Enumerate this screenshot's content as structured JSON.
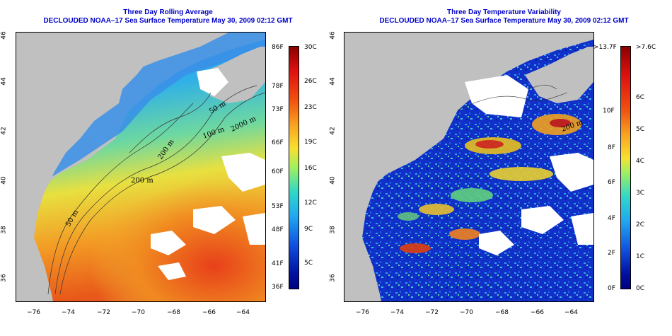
{
  "left_panel": {
    "title_line1": "Three Day Rolling Average",
    "title_line2": "DECLOUDED NOAA–17 Sea Surface Temperature May 30, 2009 02:12 GMT",
    "contours": [
      "200 m",
      "200 m",
      "2000 m",
      "100 m",
      "50 m",
      "50 m"
    ],
    "colorbar": {
      "left_labels": [
        "86F",
        "78F",
        "73F",
        "66F",
        "60F",
        "53F",
        "48F",
        "41F",
        "36F"
      ],
      "right_labels": [
        "30C",
        "26C",
        "23C",
        "19C",
        "16C",
        "12C",
        "9C",
        "5C"
      ]
    }
  },
  "right_panel": {
    "title_line1": "Three Day Temperature Variability",
    "title_line2": "DECLOUDED NOAA–17 Sea Surface Temperature May 30, 2009 02:12 GMT",
    "contours": [
      "200 m"
    ],
    "colorbar": {
      "left_labels": [
        ">13.7F",
        "10F",
        "8F",
        "6F",
        "4F",
        "2F",
        "0F"
      ],
      "right_labels": [
        ">7.6C",
        "6C",
        "5C",
        "4C",
        "3C",
        "2C",
        "1C",
        "0C"
      ]
    }
  },
  "axes": {
    "longitude_ticks": [
      "−76",
      "−74",
      "−72",
      "−70",
      "−68",
      "−66",
      "−64"
    ],
    "latitude_ticks": [
      "46",
      "44",
      "42",
      "40",
      "38",
      "36"
    ]
  },
  "colors": {
    "land": "#c0c0c0",
    "cloud": "#ffffff",
    "title": "#0000c8",
    "contour": "#333333"
  }
}
